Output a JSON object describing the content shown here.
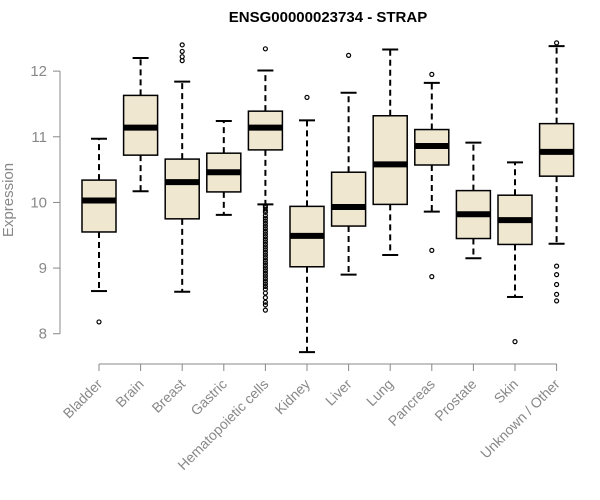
{
  "chart_data": {
    "type": "boxplot",
    "title": "ENSG00000023734 - STRAP",
    "xlabel": "",
    "ylabel": "Expression",
    "ylim": [
      7.6,
      12.55
    ],
    "yticks": [
      8,
      9,
      10,
      11,
      12
    ],
    "box_color": "#efe7d0",
    "categories": [
      "Bladder",
      "Brain",
      "Breast",
      "Gastric",
      "Hematopoietic cells",
      "Kidney",
      "Liver",
      "Lung",
      "Pancreas",
      "Prostate",
      "Skin",
      "Unknown / Other"
    ],
    "boxes": [
      {
        "name": "Bladder",
        "whisker_low": 8.65,
        "q1": 9.55,
        "median": 10.03,
        "q3": 10.34,
        "whisker_high": 10.97,
        "outliers": [
          8.18
        ]
      },
      {
        "name": "Brain",
        "whisker_low": 10.17,
        "q1": 10.72,
        "median": 11.14,
        "q3": 11.63,
        "whisker_high": 12.2,
        "outliers": []
      },
      {
        "name": "Breast",
        "whisker_low": 8.64,
        "q1": 9.75,
        "median": 10.31,
        "q3": 10.66,
        "whisker_high": 11.84,
        "outliers": [
          12.16,
          12.22,
          12.3,
          12.4
        ]
      },
      {
        "name": "Gastric",
        "whisker_low": 9.81,
        "q1": 10.16,
        "median": 10.46,
        "q3": 10.75,
        "whisker_high": 11.24,
        "outliers": []
      },
      {
        "name": "Hematopoietic cells",
        "whisker_low": 9.97,
        "q1": 10.8,
        "median": 11.14,
        "q3": 11.39,
        "whisker_high": 12.01,
        "outliers": [
          12.34,
          9.95,
          9.92,
          9.88,
          9.85,
          9.8,
          9.76,
          9.72,
          9.68,
          9.64,
          9.6,
          9.56,
          9.52,
          9.48,
          9.44,
          9.4,
          9.36,
          9.32,
          9.28,
          9.24,
          9.2,
          9.16,
          9.12,
          9.08,
          9.04,
          9.0,
          8.96,
          8.92,
          8.88,
          8.84,
          8.8,
          8.76,
          8.72,
          8.68,
          8.62,
          8.55,
          8.48,
          8.44,
          8.36
        ]
      },
      {
        "name": "Kidney",
        "whisker_low": 7.72,
        "q1": 9.02,
        "median": 9.49,
        "q3": 9.94,
        "whisker_high": 11.25,
        "outliers": [
          11.6
        ]
      },
      {
        "name": "Liver",
        "whisker_low": 8.9,
        "q1": 9.64,
        "median": 9.93,
        "q3": 10.46,
        "whisker_high": 11.67,
        "outliers": [
          12.24
        ]
      },
      {
        "name": "Lung",
        "whisker_low": 9.2,
        "q1": 9.97,
        "median": 10.58,
        "q3": 11.32,
        "whisker_high": 12.33,
        "outliers": []
      },
      {
        "name": "Pancreas",
        "whisker_low": 9.86,
        "q1": 10.57,
        "median": 10.86,
        "q3": 11.11,
        "whisker_high": 11.82,
        "outliers": [
          11.95,
          9.27,
          8.87
        ]
      },
      {
        "name": "Prostate",
        "whisker_low": 9.15,
        "q1": 9.45,
        "median": 9.82,
        "q3": 10.18,
        "whisker_high": 10.91,
        "outliers": []
      },
      {
        "name": "Skin",
        "whisker_low": 8.56,
        "q1": 9.36,
        "median": 9.73,
        "q3": 10.11,
        "whisker_high": 10.61,
        "outliers": [
          7.88
        ]
      },
      {
        "name": "Unknown / Other",
        "whisker_low": 9.37,
        "q1": 10.4,
        "median": 10.77,
        "q3": 11.2,
        "whisker_high": 12.38,
        "outliers": [
          12.43,
          9.03,
          8.9,
          8.75,
          8.6,
          8.5
        ]
      }
    ]
  }
}
